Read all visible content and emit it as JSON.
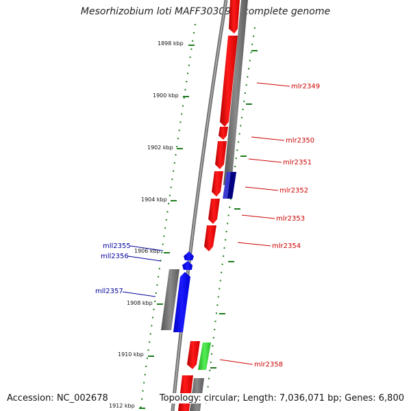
{
  "title": "Mesorhizobium loti MAFF303099, complete genome",
  "footer": {
    "accession": "Accession: NC_002678",
    "topology": "Topology: circular; Length: 7,036,071 bp; Genes: 6,800"
  },
  "colors": {
    "forward_gene": "#ff0000",
    "reverse_gene": "#0000ff",
    "other_gene": "#33cc33",
    "grey_feature": "#777777",
    "tick": "#1a7a1a",
    "forward_label": "#cc0000",
    "reverse_label": "#000099"
  },
  "scale_labels": [
    "1898 kbp",
    "1900 kbp",
    "1902 kbp",
    "1904 kbp",
    "1906 kbp",
    "1908 kbp",
    "1910 kbp",
    "1912 kbp"
  ],
  "forward_gene_labels": [
    "mlr2349",
    "mlr2350",
    "mlr2351",
    "mlr2352",
    "mlr2353",
    "mlr2354",
    "mlr2358"
  ],
  "reverse_gene_labels": [
    "mll2355",
    "mll2356",
    "mll2357"
  ]
}
